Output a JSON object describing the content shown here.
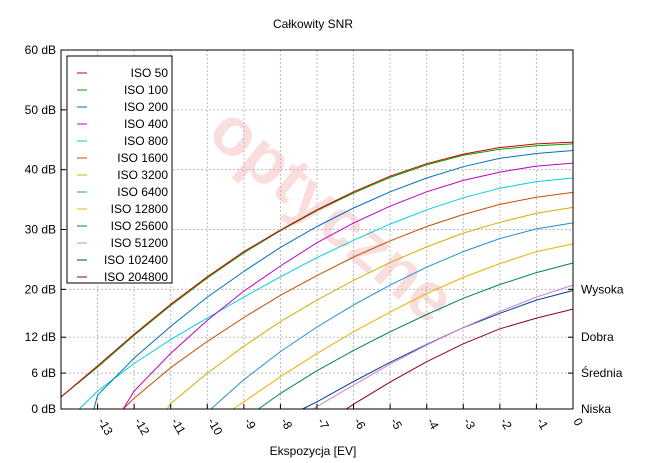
{
  "chart_data": {
    "type": "line",
    "title": "Całkowity SNR",
    "xlabel": "Ekspozycja [EV]",
    "ylabel": "",
    "x_ticks": [
      -13,
      -12,
      -11,
      -10,
      -9,
      -8,
      -7,
      -6,
      -5,
      -4,
      -3,
      -2,
      -1,
      0
    ],
    "x_tick_labels": [
      "-13",
      "-12",
      "-11",
      "-10",
      "-9",
      "-8",
      "-7",
      "-6",
      "-5",
      "-4",
      "-3",
      "-2",
      "-1",
      "0"
    ],
    "xlim": [
      -14.0,
      0.0
    ],
    "y_ticks": [
      0,
      6,
      12,
      20,
      30,
      40,
      50,
      60
    ],
    "y_tick_labels": [
      "0 dB",
      "6 dB",
      "12 dB",
      "20 dB",
      "30 dB",
      "40 dB",
      "50 dB",
      "60 dB"
    ],
    "ylim": [
      0,
      60
    ],
    "grid": true,
    "legend_position": "top-left",
    "right_axis_labels": [
      {
        "value": 0,
        "label": "Niska"
      },
      {
        "value": 6,
        "label": "Średnia"
      },
      {
        "value": 12,
        "label": "Dobra"
      },
      {
        "value": 20,
        "label": "Wysoka"
      }
    ],
    "watermark": "optyczne",
    "series": [
      {
        "name": "ISO 50",
        "color": "#d00000",
        "x": [
          -14.0,
          -13,
          -12,
          -11,
          -10,
          -9,
          -8,
          -7,
          -6,
          -5,
          -4,
          -3,
          -2,
          -1,
          0
        ],
        "values": [
          2.0,
          7.2,
          12.5,
          17.5,
          22.1,
          26.3,
          29.9,
          33.3,
          36.3,
          38.9,
          41.0,
          42.6,
          43.7,
          44.3,
          44.6
        ]
      },
      {
        "name": "ISO 100",
        "color": "#00a000",
        "x": [
          -14.0,
          -13,
          -12,
          -11,
          -10,
          -9,
          -8,
          -7,
          -6,
          -5,
          -4,
          -3,
          -2,
          -1,
          0
        ],
        "values": [
          2.0,
          7.0,
          12.3,
          17.3,
          21.9,
          26.1,
          29.8,
          33.2,
          36.1,
          38.7,
          40.8,
          42.4,
          43.4,
          44.0,
          44.3
        ]
      },
      {
        "name": "ISO 200",
        "color": "#0070c0",
        "x": [
          -13.1,
          -13,
          -12,
          -11,
          -10,
          -9,
          -8,
          -7,
          -6,
          -5,
          -4,
          -3,
          -2,
          -1,
          0
        ],
        "values": [
          0.0,
          2.3,
          8.5,
          13.8,
          18.7,
          23.0,
          27.0,
          30.5,
          33.6,
          36.3,
          38.6,
          40.5,
          41.9,
          42.7,
          43.2
        ]
      },
      {
        "name": "ISO 400",
        "color": "#c000c0",
        "x": [
          -12.3,
          -12,
          -11,
          -10,
          -9,
          -8,
          -7,
          -6,
          -5,
          -4,
          -3,
          -2,
          -1,
          0
        ],
        "values": [
          0.0,
          3.0,
          9.3,
          14.8,
          19.7,
          23.9,
          27.8,
          31.1,
          33.9,
          36.3,
          38.2,
          39.6,
          40.6,
          41.1
        ]
      },
      {
        "name": "ISO 800",
        "color": "#00d0e0",
        "x": [
          -13.5,
          -13,
          -12,
          -11,
          -10,
          -9,
          -8,
          -7,
          -6,
          -5,
          -4,
          -3,
          -2,
          -1,
          0
        ],
        "values": [
          0.0,
          3.0,
          7.6,
          11.6,
          15.2,
          18.7,
          22.1,
          25.3,
          28.2,
          30.9,
          33.3,
          35.3,
          36.9,
          38.0,
          38.6
        ]
      },
      {
        "name": "ISO 1600",
        "color": "#c05000",
        "x": [
          -12.3,
          -12,
          -11,
          -10,
          -9,
          -8,
          -7,
          -6,
          -5,
          -4,
          -3,
          -2,
          -1,
          0
        ],
        "values": [
          0.0,
          1.8,
          6.9,
          11.3,
          15.3,
          19.0,
          22.3,
          25.4,
          28.1,
          30.5,
          32.5,
          34.2,
          35.4,
          36.2
        ]
      },
      {
        "name": "ISO 3200",
        "color": "#d0b000",
        "x": [
          -11.1,
          -11,
          -10,
          -9,
          -8,
          -7,
          -6,
          -5,
          -4,
          -3,
          -2,
          -1,
          0
        ],
        "values": [
          0.0,
          0.9,
          6.0,
          10.5,
          14.6,
          18.2,
          21.5,
          24.5,
          27.1,
          29.4,
          31.2,
          32.7,
          33.7
        ]
      },
      {
        "name": "ISO 6400",
        "color": "#2090d0",
        "x": [
          -9.9,
          -9,
          -8,
          -7,
          -6,
          -5,
          -4,
          -3,
          -2,
          -1,
          0
        ],
        "values": [
          0.0,
          4.9,
          9.6,
          13.7,
          17.4,
          20.7,
          23.7,
          26.3,
          28.5,
          30.1,
          31.1
        ]
      },
      {
        "name": "ISO 12800",
        "color": "#f0b000",
        "x": [
          -9.3,
          -9,
          -8,
          -7,
          -6,
          -5,
          -4,
          -3,
          -2,
          -1,
          0
        ],
        "values": [
          0.0,
          1.2,
          5.4,
          9.3,
          12.9,
          16.2,
          19.3,
          22.0,
          24.3,
          26.3,
          27.6
        ]
      },
      {
        "name": "ISO 25600",
        "color": "#008060",
        "x": [
          -8.6,
          -8,
          -7,
          -6,
          -5,
          -4,
          -3,
          -2,
          -1,
          0
        ],
        "values": [
          0.0,
          2.6,
          6.4,
          9.8,
          12.9,
          15.8,
          18.5,
          20.8,
          22.8,
          24.4
        ]
      },
      {
        "name": "ISO 51200",
        "color": "#d080d0",
        "x": [
          -7.1,
          -7,
          -6,
          -5,
          -4,
          -3,
          -2,
          -1,
          0
        ],
        "values": [
          0.0,
          0.4,
          4.0,
          7.5,
          10.7,
          13.6,
          16.3,
          18.7,
          20.7
        ]
      },
      {
        "name": "ISO 102400",
        "color": "#004090",
        "x": [
          -7.4,
          -7,
          -6,
          -5,
          -4,
          -3,
          -2,
          -1,
          0
        ],
        "values": [
          0.0,
          1.2,
          4.6,
          7.8,
          10.8,
          13.6,
          16.0,
          18.2,
          19.8
        ]
      },
      {
        "name": "ISO 204800",
        "color": "#900020",
        "x": [
          -6.2,
          -6,
          -5,
          -4,
          -3,
          -2,
          -1,
          0
        ],
        "values": [
          0.0,
          0.8,
          4.5,
          7.9,
          10.9,
          13.4,
          15.2,
          16.7
        ]
      }
    ]
  }
}
